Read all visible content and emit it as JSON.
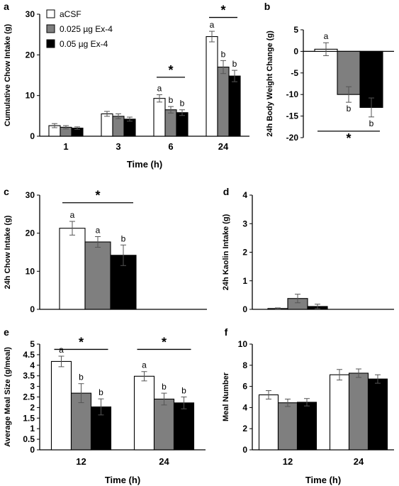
{
  "colors": {
    "aCSF": "#ffffff",
    "low": "#7f7f7f",
    "high": "#000000",
    "axis": "#000000"
  },
  "legend": [
    "aCSF",
    "0.025 µg Ex-4",
    "0.05 µg Ex-4"
  ],
  "chart_data": [
    {
      "panel": "a",
      "type": "bar",
      "ylabel": "Cumulative Chow Intake (g)",
      "xlabel": "Time (h)",
      "ylim": [
        0,
        30
      ],
      "yticks": [
        0,
        10,
        20,
        30
      ],
      "categories": [
        "1",
        "3",
        "6",
        "24"
      ],
      "series": [
        {
          "name": "aCSF",
          "values": [
            2.6,
            5.5,
            9.3,
            24.5
          ],
          "errors": [
            0.5,
            0.6,
            0.9,
            1.3
          ]
        },
        {
          "name": "0.025 µg Ex-4",
          "values": [
            2.2,
            4.9,
            6.5,
            17.0
          ],
          "errors": [
            0.4,
            0.6,
            0.8,
            1.6
          ]
        },
        {
          "name": "0.05 µg Ex-4",
          "values": [
            2.0,
            4.2,
            5.8,
            14.8
          ],
          "errors": [
            0.3,
            0.5,
            0.7,
            1.4
          ]
        }
      ],
      "letters": [
        [
          "",
          "",
          "a",
          "a"
        ],
        [
          "",
          "",
          "b",
          "b"
        ],
        [
          "",
          "",
          "b",
          "b"
        ]
      ],
      "sig": [
        {
          "from": 2,
          "to": 2,
          "y": 14.5,
          "label": "*"
        },
        {
          "from": 3,
          "to": 3,
          "y": 29.2,
          "label": "*"
        }
      ]
    },
    {
      "panel": "b",
      "type": "bar",
      "ylabel": "24h Body Weight Change (g)",
      "xlabel": "",
      "ylim": [
        -20,
        5
      ],
      "yticks": [
        5,
        0,
        -5,
        -10,
        -15,
        -20
      ],
      "categories": [
        ""
      ],
      "series": [
        {
          "name": "aCSF",
          "values": [
            0.5
          ],
          "errors": [
            1.5
          ]
        },
        {
          "name": "0.025 µg Ex-4",
          "values": [
            -10.0
          ],
          "errors": [
            1.8
          ]
        },
        {
          "name": "0.05 µg Ex-4",
          "values": [
            -13.0
          ],
          "errors": [
            2.2
          ]
        }
      ],
      "letters": [
        [
          "a"
        ],
        [
          "b"
        ],
        [
          "b"
        ]
      ],
      "sig": [
        {
          "from": 0,
          "to": 0,
          "y": -18.5,
          "label": "*",
          "starBelow": true
        }
      ]
    },
    {
      "panel": "c",
      "type": "bar",
      "ylabel": "24h Chow Intake (g)",
      "xlabel": "",
      "ylim": [
        0,
        30
      ],
      "yticks": [
        0,
        10,
        20,
        30
      ],
      "categories": [
        ""
      ],
      "series": [
        {
          "name": "aCSF",
          "values": [
            21.3
          ],
          "errors": [
            1.8
          ]
        },
        {
          "name": "0.025 µg Ex-4",
          "values": [
            17.7
          ],
          "errors": [
            1.4
          ]
        },
        {
          "name": "0.05 µg Ex-4",
          "values": [
            14.2
          ],
          "errors": [
            2.7
          ]
        }
      ],
      "letters": [
        [
          "a"
        ],
        [
          "a"
        ],
        [
          "b"
        ]
      ],
      "sig": [
        {
          "from": 0,
          "to": 0,
          "y": 28.0,
          "label": "*"
        }
      ]
    },
    {
      "panel": "d",
      "type": "bar",
      "ylabel": "24h Kaolin Intake (g)",
      "xlabel": "",
      "ylim": [
        0,
        4
      ],
      "yticks": [
        0,
        1,
        2,
        3,
        4
      ],
      "categories": [
        ""
      ],
      "series": [
        {
          "name": "aCSF",
          "values": [
            0.03
          ],
          "errors": [
            0.02
          ]
        },
        {
          "name": "0.025 µg Ex-4",
          "values": [
            0.38
          ],
          "errors": [
            0.15
          ]
        },
        {
          "name": "0.05 µg Ex-4",
          "values": [
            0.1
          ],
          "errors": [
            0.08
          ]
        }
      ],
      "letters": [
        [
          "",
          "",
          ""
        ]
      ],
      "sig": []
    },
    {
      "panel": "e",
      "type": "bar",
      "ylabel": "Average Meal Size (g/meal)",
      "xlabel": "Time (h)",
      "ylim": [
        0,
        5
      ],
      "yticks": [
        0,
        0.5,
        1,
        1.5,
        2,
        2.5,
        3,
        3.5,
        4,
        4.5,
        5
      ],
      "categories": [
        "12",
        "24"
      ],
      "series": [
        {
          "name": "aCSF",
          "values": [
            4.18,
            3.48
          ],
          "errors": [
            0.25,
            0.22
          ]
        },
        {
          "name": "0.025 µg Ex-4",
          "values": [
            2.68,
            2.4
          ],
          "errors": [
            0.45,
            0.28
          ]
        },
        {
          "name": "0.05 µg Ex-4",
          "values": [
            2.03,
            2.22
          ],
          "errors": [
            0.38,
            0.28
          ]
        }
      ],
      "letters": [
        [
          "a",
          "a"
        ],
        [
          "b",
          "b"
        ],
        [
          "b",
          "b"
        ]
      ],
      "sig": [
        {
          "from": 0,
          "to": 0,
          "y": 4.75,
          "label": "*"
        },
        {
          "from": 1,
          "to": 1,
          "y": 4.75,
          "label": "*"
        }
      ]
    },
    {
      "panel": "f",
      "type": "bar",
      "ylabel": "Meal Number",
      "xlabel": "Time (h)",
      "ylim": [
        0,
        10
      ],
      "yticks": [
        0,
        2,
        4,
        6,
        8,
        10
      ],
      "categories": [
        "12",
        "24"
      ],
      "series": [
        {
          "name": "aCSF",
          "values": [
            5.2,
            7.1
          ],
          "errors": [
            0.4,
            0.5
          ]
        },
        {
          "name": "0.025 µg Ex-4",
          "values": [
            4.45,
            7.25
          ],
          "errors": [
            0.35,
            0.4
          ]
        },
        {
          "name": "0.05 µg Ex-4",
          "values": [
            4.5,
            6.7
          ],
          "errors": [
            0.35,
            0.4
          ]
        }
      ],
      "letters": [
        [
          "",
          ""
        ],
        [
          "",
          ""
        ],
        [
          "",
          ""
        ]
      ],
      "sig": []
    }
  ]
}
